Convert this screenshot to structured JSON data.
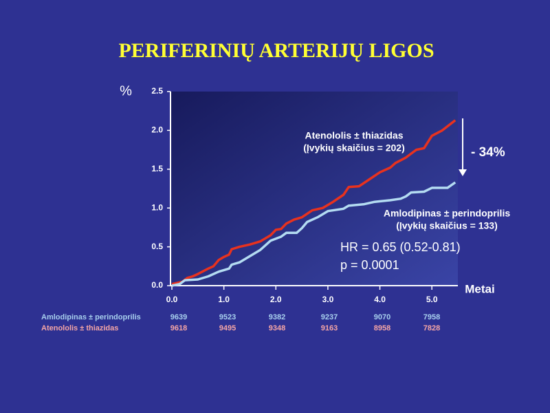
{
  "chart_data": {
    "type": "line",
    "title": "PERIFERINIŲ ARTERIJŲ LIGOS",
    "y_label": "%",
    "x_label": "Metai",
    "xlim": [
      0,
      5.5
    ],
    "xticks": [
      {
        "value": 0,
        "label": "0.0"
      },
      {
        "value": 1,
        "label": "1.0"
      },
      {
        "value": 2,
        "label": "2.0"
      },
      {
        "value": 3,
        "label": "3.0"
      },
      {
        "value": 4,
        "label": "4.0"
      },
      {
        "value": 5,
        "label": "5.0"
      }
    ],
    "ylim": [
      0,
      2.5
    ],
    "yticks": [
      {
        "value": 0,
        "label": "0.0"
      },
      0.5,
      {
        "value": 1,
        "label": "1.0"
      },
      1.5,
      {
        "value": 2,
        "label": "2.0"
      },
      2.5
    ],
    "series": [
      {
        "name": "Atenololis ± thiazidas",
        "color": "#e8321e",
        "x": [
          0,
          0.2,
          0.3,
          0.4,
          0.5,
          0.7,
          0.8,
          0.9,
          1.0,
          1.1,
          1.15,
          1.3,
          1.5,
          1.7,
          1.9,
          2.0,
          2.1,
          2.2,
          2.35,
          2.5,
          2.7,
          2.9,
          3.1,
          3.3,
          3.4,
          3.6,
          3.8,
          4.0,
          4.2,
          4.3,
          4.5,
          4.7,
          4.85,
          5.0,
          5.2,
          5.45
        ],
        "values": [
          0.02,
          0.05,
          0.1,
          0.12,
          0.15,
          0.22,
          0.25,
          0.33,
          0.37,
          0.4,
          0.47,
          0.5,
          0.53,
          0.57,
          0.65,
          0.72,
          0.73,
          0.8,
          0.85,
          0.88,
          0.97,
          1.0,
          1.08,
          1.17,
          1.27,
          1.28,
          1.37,
          1.46,
          1.52,
          1.58,
          1.65,
          1.75,
          1.77,
          1.93,
          2.0,
          2.13
        ]
      },
      {
        "name": "Amlodipinas ± perindoprilis",
        "color": "#b4dcf2",
        "x": [
          0,
          0.15,
          0.25,
          0.5,
          0.7,
          0.9,
          1.1,
          1.15,
          1.3,
          1.5,
          1.7,
          1.9,
          2.1,
          2.2,
          2.4,
          2.5,
          2.6,
          2.8,
          3.0,
          3.3,
          3.4,
          3.7,
          3.9,
          4.2,
          4.4,
          4.5,
          4.6,
          4.85,
          5.0,
          5.3,
          5.45
        ],
        "values": [
          0,
          0.02,
          0.07,
          0.08,
          0.12,
          0.18,
          0.22,
          0.27,
          0.3,
          0.38,
          0.46,
          0.58,
          0.63,
          0.68,
          0.68,
          0.74,
          0.82,
          0.88,
          0.96,
          0.99,
          1.03,
          1.05,
          1.08,
          1.1,
          1.12,
          1.15,
          1.2,
          1.21,
          1.26,
          1.26,
          1.33
        ]
      }
    ],
    "annotations": [
      "(Įvykių skaičius = 202)",
      "(Įvykių skaičius = 133)",
      "HR = 0.65 (0.52-0.81)",
      "p = 0.0001",
      "- 34%"
    ],
    "at_risk": [
      [
        9639,
        9523,
        9382,
        9237,
        9070,
        7958
      ],
      [
        9618,
        9495,
        9348,
        9163,
        8958,
        7828
      ]
    ]
  }
}
